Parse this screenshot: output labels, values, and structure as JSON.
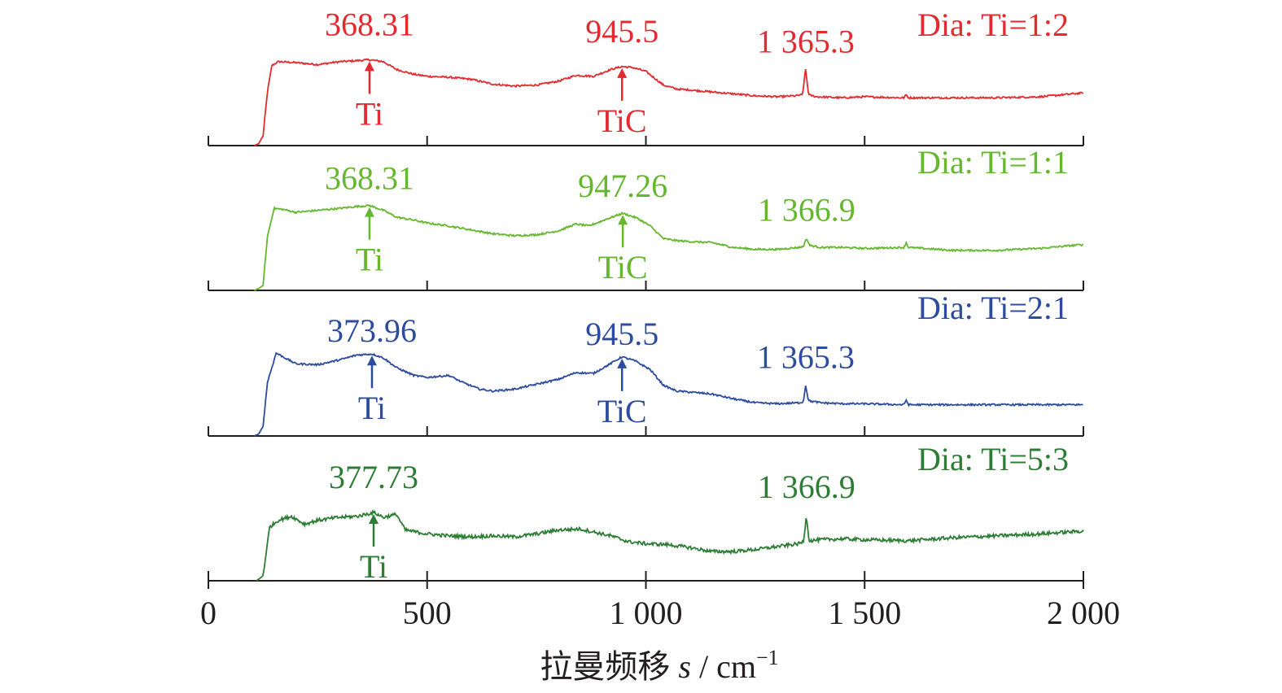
{
  "chart_data": {
    "type": "line",
    "xlabel_prefix": "拉曼频移 ",
    "xlabel_var": "s",
    "xlabel_unit": " / cm",
    "xlabel_exp": "−1",
    "xlim": [
      0,
      2000
    ],
    "xticks": [
      {
        "value": 0,
        "label": "0"
      },
      {
        "value": 500,
        "label": "500"
      },
      {
        "value": 1000,
        "label": "1 000"
      },
      {
        "value": 1500,
        "label": "1 500"
      },
      {
        "value": 2000,
        "label": "2 000"
      }
    ],
    "series": [
      {
        "name": "Dia: Ti=1:2",
        "color": "#e32b2f",
        "points": [
          [
            105,
            0
          ],
          [
            115,
            0.02
          ],
          [
            125,
            0.1
          ],
          [
            135,
            0.55
          ],
          [
            145,
            0.82
          ],
          [
            160,
            0.86
          ],
          [
            200,
            0.85
          ],
          [
            250,
            0.83
          ],
          [
            300,
            0.86
          ],
          [
            340,
            0.87
          ],
          [
            368,
            0.88
          ],
          [
            400,
            0.86
          ],
          [
            430,
            0.78
          ],
          [
            470,
            0.73
          ],
          [
            500,
            0.71
          ],
          [
            550,
            0.7
          ],
          [
            600,
            0.68
          ],
          [
            650,
            0.63
          ],
          [
            700,
            0.61
          ],
          [
            750,
            0.62
          ],
          [
            800,
            0.66
          ],
          [
            840,
            0.72
          ],
          [
            880,
            0.71
          ],
          [
            920,
            0.78
          ],
          [
            945,
            0.81
          ],
          [
            970,
            0.8
          ],
          [
            1000,
            0.76
          ],
          [
            1020,
            0.69
          ],
          [
            1040,
            0.62
          ],
          [
            1070,
            0.58
          ],
          [
            1100,
            0.57
          ],
          [
            1150,
            0.55
          ],
          [
            1200,
            0.53
          ],
          [
            1250,
            0.51
          ],
          [
            1300,
            0.5
          ],
          [
            1340,
            0.51
          ],
          [
            1358,
            0.52
          ],
          [
            1365,
            0.78
          ],
          [
            1372,
            0.52
          ],
          [
            1390,
            0.5
          ],
          [
            1450,
            0.49
          ],
          [
            1500,
            0.5
          ],
          [
            1590,
            0.49
          ],
          [
            1595,
            0.52
          ],
          [
            1600,
            0.49
          ],
          [
            1700,
            0.49
          ],
          [
            1800,
            0.49
          ],
          [
            1900,
            0.5
          ],
          [
            2000,
            0.54
          ]
        ],
        "annotations": [
          {
            "x": 368.31,
            "value": "368.31",
            "compound": "Ti"
          },
          {
            "x": 945.5,
            "value": "945.5",
            "compound": "TiC"
          },
          {
            "x": 1365.3,
            "value": "1 365.3",
            "compound": ""
          }
        ]
      },
      {
        "name": "Dia: Ti=1:1",
        "color": "#65b72e",
        "points": [
          [
            105,
            0
          ],
          [
            115,
            0.02
          ],
          [
            125,
            0.05
          ],
          [
            135,
            0.55
          ],
          [
            150,
            0.84
          ],
          [
            170,
            0.83
          ],
          [
            200,
            0.8
          ],
          [
            250,
            0.82
          ],
          [
            300,
            0.84
          ],
          [
            340,
            0.86
          ],
          [
            368,
            0.87
          ],
          [
            400,
            0.82
          ],
          [
            430,
            0.75
          ],
          [
            470,
            0.72
          ],
          [
            500,
            0.69
          ],
          [
            550,
            0.66
          ],
          [
            600,
            0.62
          ],
          [
            650,
            0.58
          ],
          [
            700,
            0.56
          ],
          [
            750,
            0.57
          ],
          [
            800,
            0.61
          ],
          [
            840,
            0.68
          ],
          [
            870,
            0.66
          ],
          [
            910,
            0.73
          ],
          [
            947,
            0.79
          ],
          [
            980,
            0.74
          ],
          [
            1010,
            0.66
          ],
          [
            1040,
            0.53
          ],
          [
            1070,
            0.51
          ],
          [
            1100,
            0.5
          ],
          [
            1150,
            0.49
          ],
          [
            1200,
            0.44
          ],
          [
            1250,
            0.42
          ],
          [
            1300,
            0.42
          ],
          [
            1350,
            0.44
          ],
          [
            1360,
            0.45
          ],
          [
            1367,
            0.53
          ],
          [
            1375,
            0.46
          ],
          [
            1400,
            0.44
          ],
          [
            1450,
            0.44
          ],
          [
            1500,
            0.43
          ],
          [
            1590,
            0.44
          ],
          [
            1595,
            0.49
          ],
          [
            1600,
            0.44
          ],
          [
            1700,
            0.41
          ],
          [
            1800,
            0.41
          ],
          [
            1900,
            0.43
          ],
          [
            2000,
            0.47
          ]
        ],
        "annotations": [
          {
            "x": 368.31,
            "value": "368.31",
            "compound": "Ti"
          },
          {
            "x": 947.26,
            "value": "947.26",
            "compound": "TiC"
          },
          {
            "x": 1366.9,
            "value": "1 366.9",
            "compound": ""
          }
        ]
      },
      {
        "name": "Dia: Ti=2:1",
        "color": "#2e4c9f",
        "points": [
          [
            105,
            0
          ],
          [
            115,
            0.02
          ],
          [
            125,
            0.1
          ],
          [
            135,
            0.55
          ],
          [
            155,
            0.85
          ],
          [
            175,
            0.8
          ],
          [
            200,
            0.74
          ],
          [
            250,
            0.73
          ],
          [
            300,
            0.78
          ],
          [
            340,
            0.83
          ],
          [
            374,
            0.84
          ],
          [
            400,
            0.8
          ],
          [
            430,
            0.7
          ],
          [
            470,
            0.62
          ],
          [
            500,
            0.6
          ],
          [
            550,
            0.62
          ],
          [
            580,
            0.55
          ],
          [
            620,
            0.48
          ],
          [
            650,
            0.46
          ],
          [
            700,
            0.48
          ],
          [
            750,
            0.53
          ],
          [
            800,
            0.58
          ],
          [
            840,
            0.65
          ],
          [
            880,
            0.64
          ],
          [
            915,
            0.73
          ],
          [
            945,
            0.81
          ],
          [
            975,
            0.77
          ],
          [
            1010,
            0.68
          ],
          [
            1040,
            0.52
          ],
          [
            1070,
            0.46
          ],
          [
            1100,
            0.45
          ],
          [
            1150,
            0.43
          ],
          [
            1200,
            0.38
          ],
          [
            1250,
            0.34
          ],
          [
            1300,
            0.33
          ],
          [
            1350,
            0.34
          ],
          [
            1360,
            0.35
          ],
          [
            1365,
            0.52
          ],
          [
            1372,
            0.36
          ],
          [
            1400,
            0.34
          ],
          [
            1450,
            0.33
          ],
          [
            1500,
            0.33
          ],
          [
            1590,
            0.32
          ],
          [
            1595,
            0.37
          ],
          [
            1600,
            0.32
          ],
          [
            1700,
            0.32
          ],
          [
            1800,
            0.32
          ],
          [
            1900,
            0.32
          ],
          [
            2000,
            0.32
          ]
        ],
        "annotations": [
          {
            "x": 373.96,
            "value": "373.96",
            "compound": "Ti"
          },
          {
            "x": 945.5,
            "value": "945.5",
            "compound": "TiC"
          },
          {
            "x": 1365.3,
            "value": "1 365.3",
            "compound": ""
          }
        ]
      },
      {
        "name": "Dia: Ti=5:3",
        "color": "#2d7d35",
        "points": [
          [
            110,
            0
          ],
          [
            125,
            0.05
          ],
          [
            140,
            0.55
          ],
          [
            160,
            0.62
          ],
          [
            190,
            0.66
          ],
          [
            220,
            0.58
          ],
          [
            250,
            0.62
          ],
          [
            300,
            0.65
          ],
          [
            340,
            0.66
          ],
          [
            378,
            0.7
          ],
          [
            400,
            0.65
          ],
          [
            430,
            0.68
          ],
          [
            450,
            0.52
          ],
          [
            500,
            0.48
          ],
          [
            550,
            0.46
          ],
          [
            600,
            0.45
          ],
          [
            650,
            0.46
          ],
          [
            700,
            0.45
          ],
          [
            750,
            0.48
          ],
          [
            800,
            0.52
          ],
          [
            850,
            0.53
          ],
          [
            880,
            0.5
          ],
          [
            920,
            0.46
          ],
          [
            960,
            0.4
          ],
          [
            1000,
            0.38
          ],
          [
            1050,
            0.37
          ],
          [
            1100,
            0.34
          ],
          [
            1150,
            0.3
          ],
          [
            1200,
            0.3
          ],
          [
            1250,
            0.32
          ],
          [
            1300,
            0.35
          ],
          [
            1350,
            0.38
          ],
          [
            1360,
            0.4
          ],
          [
            1367,
            0.67
          ],
          [
            1373,
            0.41
          ],
          [
            1400,
            0.42
          ],
          [
            1450,
            0.43
          ],
          [
            1500,
            0.42
          ],
          [
            1600,
            0.41
          ],
          [
            1700,
            0.44
          ],
          [
            1800,
            0.46
          ],
          [
            1900,
            0.48
          ],
          [
            2000,
            0.51
          ]
        ],
        "annotations": [
          {
            "x": 377.73,
            "value": "377.73",
            "compound": "Ti"
          },
          {
            "x": 1366.9,
            "value": "1 366.9",
            "compound": ""
          }
        ]
      }
    ]
  }
}
